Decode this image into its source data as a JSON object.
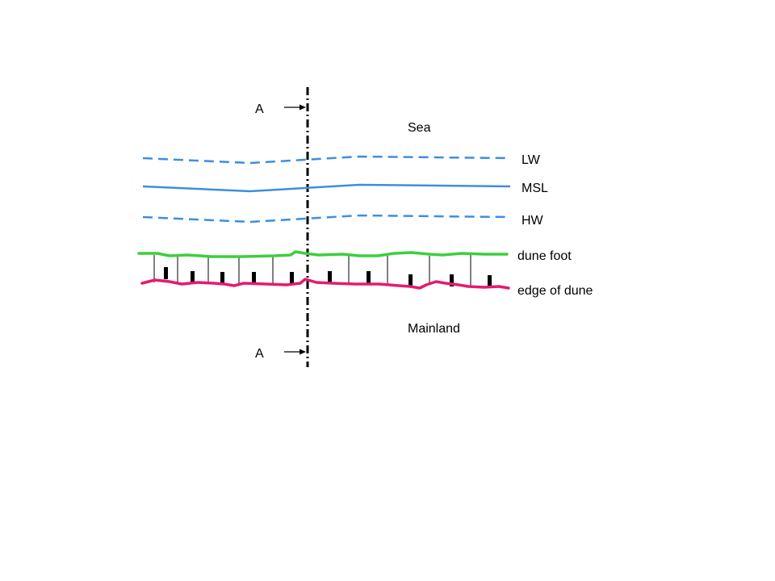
{
  "labels": {
    "sea": "Sea",
    "lw": "LW",
    "msl": "MSL",
    "hw": "HW",
    "dune_foot": "dune foot",
    "edge_of_dune": "edge of dune",
    "mainland": "Mainland",
    "section_top": "A",
    "section_bottom": "A"
  },
  "colors": {
    "water_lines": "#3c8fe0",
    "dune_foot": "#3ccf3c",
    "edge_of_dune": "#e8196e",
    "section_line": "#000000",
    "text": "#000000"
  }
}
